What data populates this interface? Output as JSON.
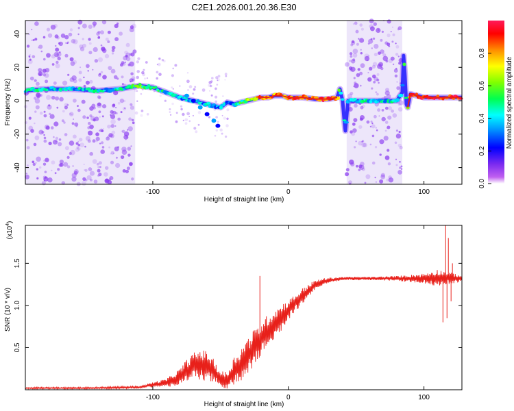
{
  "title": "C2E1.2026.001.20.36.E30",
  "colors": {
    "snr_line": "#e8201a",
    "track": "#e8201a",
    "speckle": "#8a3cf0",
    "band": "#d8c8f4"
  },
  "chart_data": [
    {
      "type": "heatmap",
      "xlabel": "Height of straight line (km)",
      "ylabel": "Frequency (Hz)",
      "xlim": [
        -194,
        128
      ],
      "ylim": [
        -50,
        48
      ],
      "x_ticks": [
        {
          "v": -100,
          "label": "-100"
        },
        {
          "v": 0,
          "label": "0"
        },
        {
          "v": 100,
          "label": "100"
        }
      ],
      "y_ticks": [
        {
          "v": -40,
          "label": "-40"
        },
        {
          "v": -20,
          "label": "-20"
        },
        {
          "v": 0,
          "label": "0"
        },
        {
          "v": 20,
          "label": "20"
        },
        {
          "v": 40,
          "label": "40"
        }
      ],
      "colorbar": {
        "label": "Normalized spectral amplitude",
        "range": [
          0,
          1
        ],
        "ticks": [
          "0.0",
          "0.2",
          "0.4",
          "0.6",
          "0.8"
        ]
      },
      "noise_bands": [
        [
          -194,
          -113
        ],
        [
          43,
          84
        ]
      ],
      "ridge": {
        "x": [
          -194,
          -180,
          -160,
          -140,
          -125,
          -110,
          -100,
          -90,
          -80,
          -70,
          -60,
          -50,
          -45,
          -40,
          -35,
          -30,
          -25,
          -20,
          -15,
          -10,
          -5,
          0,
          10,
          20,
          30,
          36,
          38,
          40,
          41,
          42,
          44,
          50,
          60,
          70,
          80,
          84,
          85,
          86,
          87,
          88,
          90,
          95,
          100,
          110,
          120,
          128
        ],
        "y": [
          6,
          7,
          7,
          6,
          7,
          9,
          8,
          5,
          2,
          0,
          -2,
          -4,
          -1,
          -2,
          -1,
          0,
          1,
          2,
          2,
          3,
          3,
          2,
          2,
          1,
          1,
          2,
          7,
          0,
          -10,
          -18,
          0,
          0,
          0,
          0,
          0,
          5,
          27,
          15,
          -2,
          -4,
          4,
          3,
          2,
          2,
          2,
          2
        ]
      },
      "ridge_amplitude": {
        "x": [
          -194,
          -120,
          -110,
          -100,
          -80,
          -60,
          -40,
          -20,
          0,
          20,
          35,
          40,
          85,
          90,
          128
        ],
        "a": [
          0.4,
          0.4,
          0.55,
          0.5,
          0.35,
          0.35,
          0.35,
          0.85,
          0.8,
          0.9,
          0.9,
          0.4,
          0.4,
          0.9,
          0.92
        ]
      },
      "branch": {
        "x": [
          -75,
          -70,
          -65,
          -60,
          -55,
          -52
        ],
        "y": [
          3,
          0,
          -4,
          -8,
          -12,
          -15
        ]
      }
    },
    {
      "type": "line",
      "xlabel": "Height of straight line (km)",
      "ylabel": "SNR (10 * v/v)",
      "multiplier": "(x10",
      "multiplier_exp": "4",
      "multiplier_close": ")",
      "xlim": [
        -194,
        128
      ],
      "ylim": [
        0,
        1.95
      ],
      "x_ticks": [
        {
          "v": -100,
          "label": "-100"
        },
        {
          "v": 0,
          "label": "0"
        },
        {
          "v": 100,
          "label": "100"
        }
      ],
      "y_ticks": [
        {
          "v": 0.5,
          "label": "0.5"
        },
        {
          "v": 1.0,
          "label": "1.0"
        },
        {
          "v": 1.5,
          "label": "1.5"
        }
      ],
      "envelope": {
        "x": [
          -194,
          -150,
          -110,
          -100,
          -90,
          -80,
          -75,
          -70,
          -65,
          -60,
          -55,
          -50,
          -45,
          -40,
          -35,
          -30,
          -25,
          -20,
          -15,
          -10,
          -5,
          0,
          5,
          10,
          15,
          20,
          25,
          30,
          40,
          60,
          80,
          100,
          110,
          128
        ],
        "mid": [
          0.02,
          0.02,
          0.03,
          0.06,
          0.08,
          0.15,
          0.22,
          0.28,
          0.3,
          0.28,
          0.22,
          0.12,
          0.1,
          0.22,
          0.3,
          0.4,
          0.5,
          0.6,
          0.7,
          0.78,
          0.86,
          0.95,
          1.03,
          1.1,
          1.18,
          1.24,
          1.28,
          1.3,
          1.32,
          1.32,
          1.32,
          1.32,
          1.33,
          1.32
        ],
        "amp": [
          0.01,
          0.01,
          0.015,
          0.03,
          0.05,
          0.1,
          0.14,
          0.16,
          0.18,
          0.18,
          0.14,
          0.1,
          0.12,
          0.18,
          0.2,
          0.22,
          0.22,
          0.2,
          0.2,
          0.18,
          0.16,
          0.12,
          0.1,
          0.1,
          0.08,
          0.06,
          0.04,
          0.03,
          0.02,
          0.02,
          0.03,
          0.06,
          0.1,
          0.04
        ]
      },
      "spikes": [
        {
          "x": -21,
          "y": 1.35
        },
        {
          "x": 114,
          "y": 0.8
        },
        {
          "x": 116,
          "y": 1.95
        },
        {
          "x": 117,
          "y": 0.85
        },
        {
          "x": 118,
          "y": 1.8
        },
        {
          "x": 120,
          "y": 1.05
        },
        {
          "x": 121,
          "y": 1.5
        }
      ]
    }
  ]
}
